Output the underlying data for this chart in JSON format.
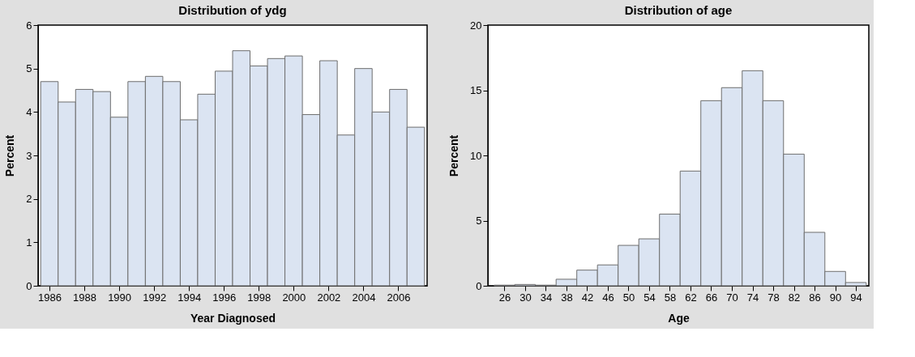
{
  "chart_data": [
    {
      "type": "histogram",
      "title": "Distribution of ydg",
      "xlabel": "Year Diagnosed",
      "ylabel": "Percent",
      "color": "#dbe4f2",
      "bins": [
        1985.5,
        1986.5,
        1987.5,
        1988.5,
        1989.5,
        1990.5,
        1991.5,
        1992.5,
        1993.5,
        1994.5,
        1995.5,
        1996.5,
        1997.5,
        1998.5,
        1999.5,
        2000.5,
        2001.5,
        2002.5,
        2003.5,
        2004.5,
        2005.5,
        2006.5,
        2007.5
      ],
      "values": [
        4.7,
        4.23,
        4.52,
        4.47,
        3.88,
        4.7,
        4.82,
        4.7,
        3.82,
        4.41,
        4.94,
        5.41,
        5.06,
        5.23,
        5.29,
        3.94,
        5.18,
        3.47,
        5.0,
        4.0,
        4.52,
        3.65
      ],
      "xlim": [
        1985.35,
        2007.65
      ],
      "xticks": [
        1986,
        1988,
        1990,
        1992,
        1994,
        1996,
        1998,
        2000,
        2002,
        2004,
        2006
      ],
      "ylim": [
        0,
        6
      ],
      "yticks": [
        0,
        1,
        2,
        3,
        4,
        5,
        6
      ]
    },
    {
      "type": "histogram",
      "title": "Distribution of age",
      "xlabel": "Age",
      "ylabel": "Percent",
      "color": "#dbe4f2",
      "bins": [
        24,
        28,
        32,
        36,
        40,
        44,
        48,
        52,
        56,
        60,
        64,
        68,
        72,
        76,
        80,
        84,
        88,
        92,
        96
      ],
      "values": [
        0.05,
        0.1,
        0.05,
        0.5,
        1.2,
        1.6,
        3.1,
        3.6,
        5.5,
        8.8,
        14.2,
        15.2,
        16.5,
        14.2,
        10.1,
        4.1,
        1.1,
        0.25
      ],
      "xlim": [
        22.8,
        96.5
      ],
      "xticks": [
        26,
        30,
        34,
        38,
        42,
        46,
        50,
        54,
        58,
        62,
        66,
        70,
        74,
        78,
        82,
        86,
        90,
        94
      ],
      "ylim": [
        0,
        20
      ],
      "yticks": [
        0,
        5,
        10,
        15,
        20
      ]
    }
  ]
}
